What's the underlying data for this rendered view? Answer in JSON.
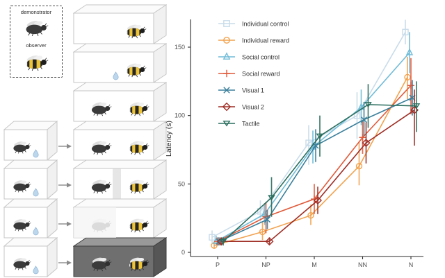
{
  "figure": {
    "demonstrator_label": "demonstrator",
    "observer_label": "observer",
    "conditions": [
      {
        "label": "Individual control",
        "color": "#c9dcea",
        "bees": 1,
        "droplet": false,
        "screen": "none",
        "dark": false,
        "small_box": false
      },
      {
        "label": "Individual reward",
        "color": "#f2a24e",
        "bees": 1,
        "droplet": true,
        "screen": "none",
        "dark": false,
        "small_box": false
      },
      {
        "label": "Social control",
        "color": "#70bcd8",
        "bees": 2,
        "droplet": false,
        "screen": "none",
        "dark": false,
        "small_box": false
      },
      {
        "label": "Social reward",
        "color": "#e05a3a",
        "bees": 2,
        "droplet": false,
        "screen": "none",
        "dark": false,
        "small_box": true
      },
      {
        "label": "Visual 1",
        "color": "#3a7f9b",
        "bees": 2,
        "droplet": false,
        "screen": "divider",
        "dark": false,
        "small_box": true
      },
      {
        "label": "Visual 2",
        "color": "#9e2d24",
        "bees": 2,
        "droplet": false,
        "screen": "overlay",
        "dark": false,
        "small_box": true
      },
      {
        "label": "Tactile",
        "color": "#2a6e5e",
        "bees": 2,
        "droplet": false,
        "screen": "none",
        "dark": true,
        "small_box": true
      }
    ]
  },
  "chart_data": {
    "type": "line",
    "title": "",
    "xlabel": "",
    "ylabel": "Latency (s)",
    "categories": [
      "P",
      "NP",
      "M",
      "NN",
      "N"
    ],
    "yticks": [
      0,
      50,
      100,
      150
    ],
    "ylim": [
      0,
      175
    ],
    "grid": false,
    "legend_position": "top-left-inside",
    "series": [
      {
        "name": "Individual control",
        "color": "#c9dcea",
        "marker": "square",
        "values": [
          11,
          30,
          80,
          100,
          161
        ],
        "err_lo": [
          7,
          22,
          64,
          83,
          152
        ],
        "err_hi": [
          16,
          38,
          93,
          117,
          170
        ]
      },
      {
        "name": "Individual reward",
        "color": "#f2a24e",
        "marker": "circle",
        "values": [
          5,
          15,
          27,
          63,
          128
        ],
        "err_lo": [
          3,
          9,
          20,
          49,
          112
        ],
        "err_hi": [
          8,
          22,
          35,
          81,
          143
        ]
      },
      {
        "name": "Social control",
        "color": "#70bcd8",
        "marker": "triangle-up",
        "values": [
          8,
          28,
          77,
          106,
          146
        ],
        "err_lo": [
          5,
          20,
          65,
          93,
          131
        ],
        "err_hi": [
          12,
          36,
          89,
          119,
          161
        ]
      },
      {
        "name": "Social reward",
        "color": "#e05a3a",
        "marker": "plus",
        "values": [
          8,
          26,
          39,
          84,
          122
        ],
        "err_lo": [
          5,
          14,
          28,
          72,
          101
        ],
        "err_hi": [
          11,
          37,
          50,
          97,
          142
        ]
      },
      {
        "name": "Visual 1",
        "color": "#3a7f9b",
        "marker": "x",
        "values": [
          8,
          24,
          78,
          97,
          113
        ],
        "err_lo": [
          5,
          17,
          66,
          85,
          100
        ],
        "err_hi": [
          11,
          31,
          90,
          110,
          126
        ]
      },
      {
        "name": "Visual 2",
        "color": "#9e2d24",
        "marker": "diamond",
        "values": [
          8,
          8,
          38,
          80,
          104
        ],
        "err_lo": [
          5,
          6,
          28,
          65,
          78
        ],
        "err_hi": [
          11,
          11,
          48,
          95,
          119
        ]
      },
      {
        "name": "Tactile",
        "color": "#2a6e5e",
        "marker": "triangle-down",
        "values": [
          8,
          40,
          85,
          108,
          107
        ],
        "err_lo": [
          5,
          26,
          70,
          91,
          88
        ],
        "err_hi": [
          11,
          55,
          100,
          123,
          125
        ]
      }
    ]
  }
}
